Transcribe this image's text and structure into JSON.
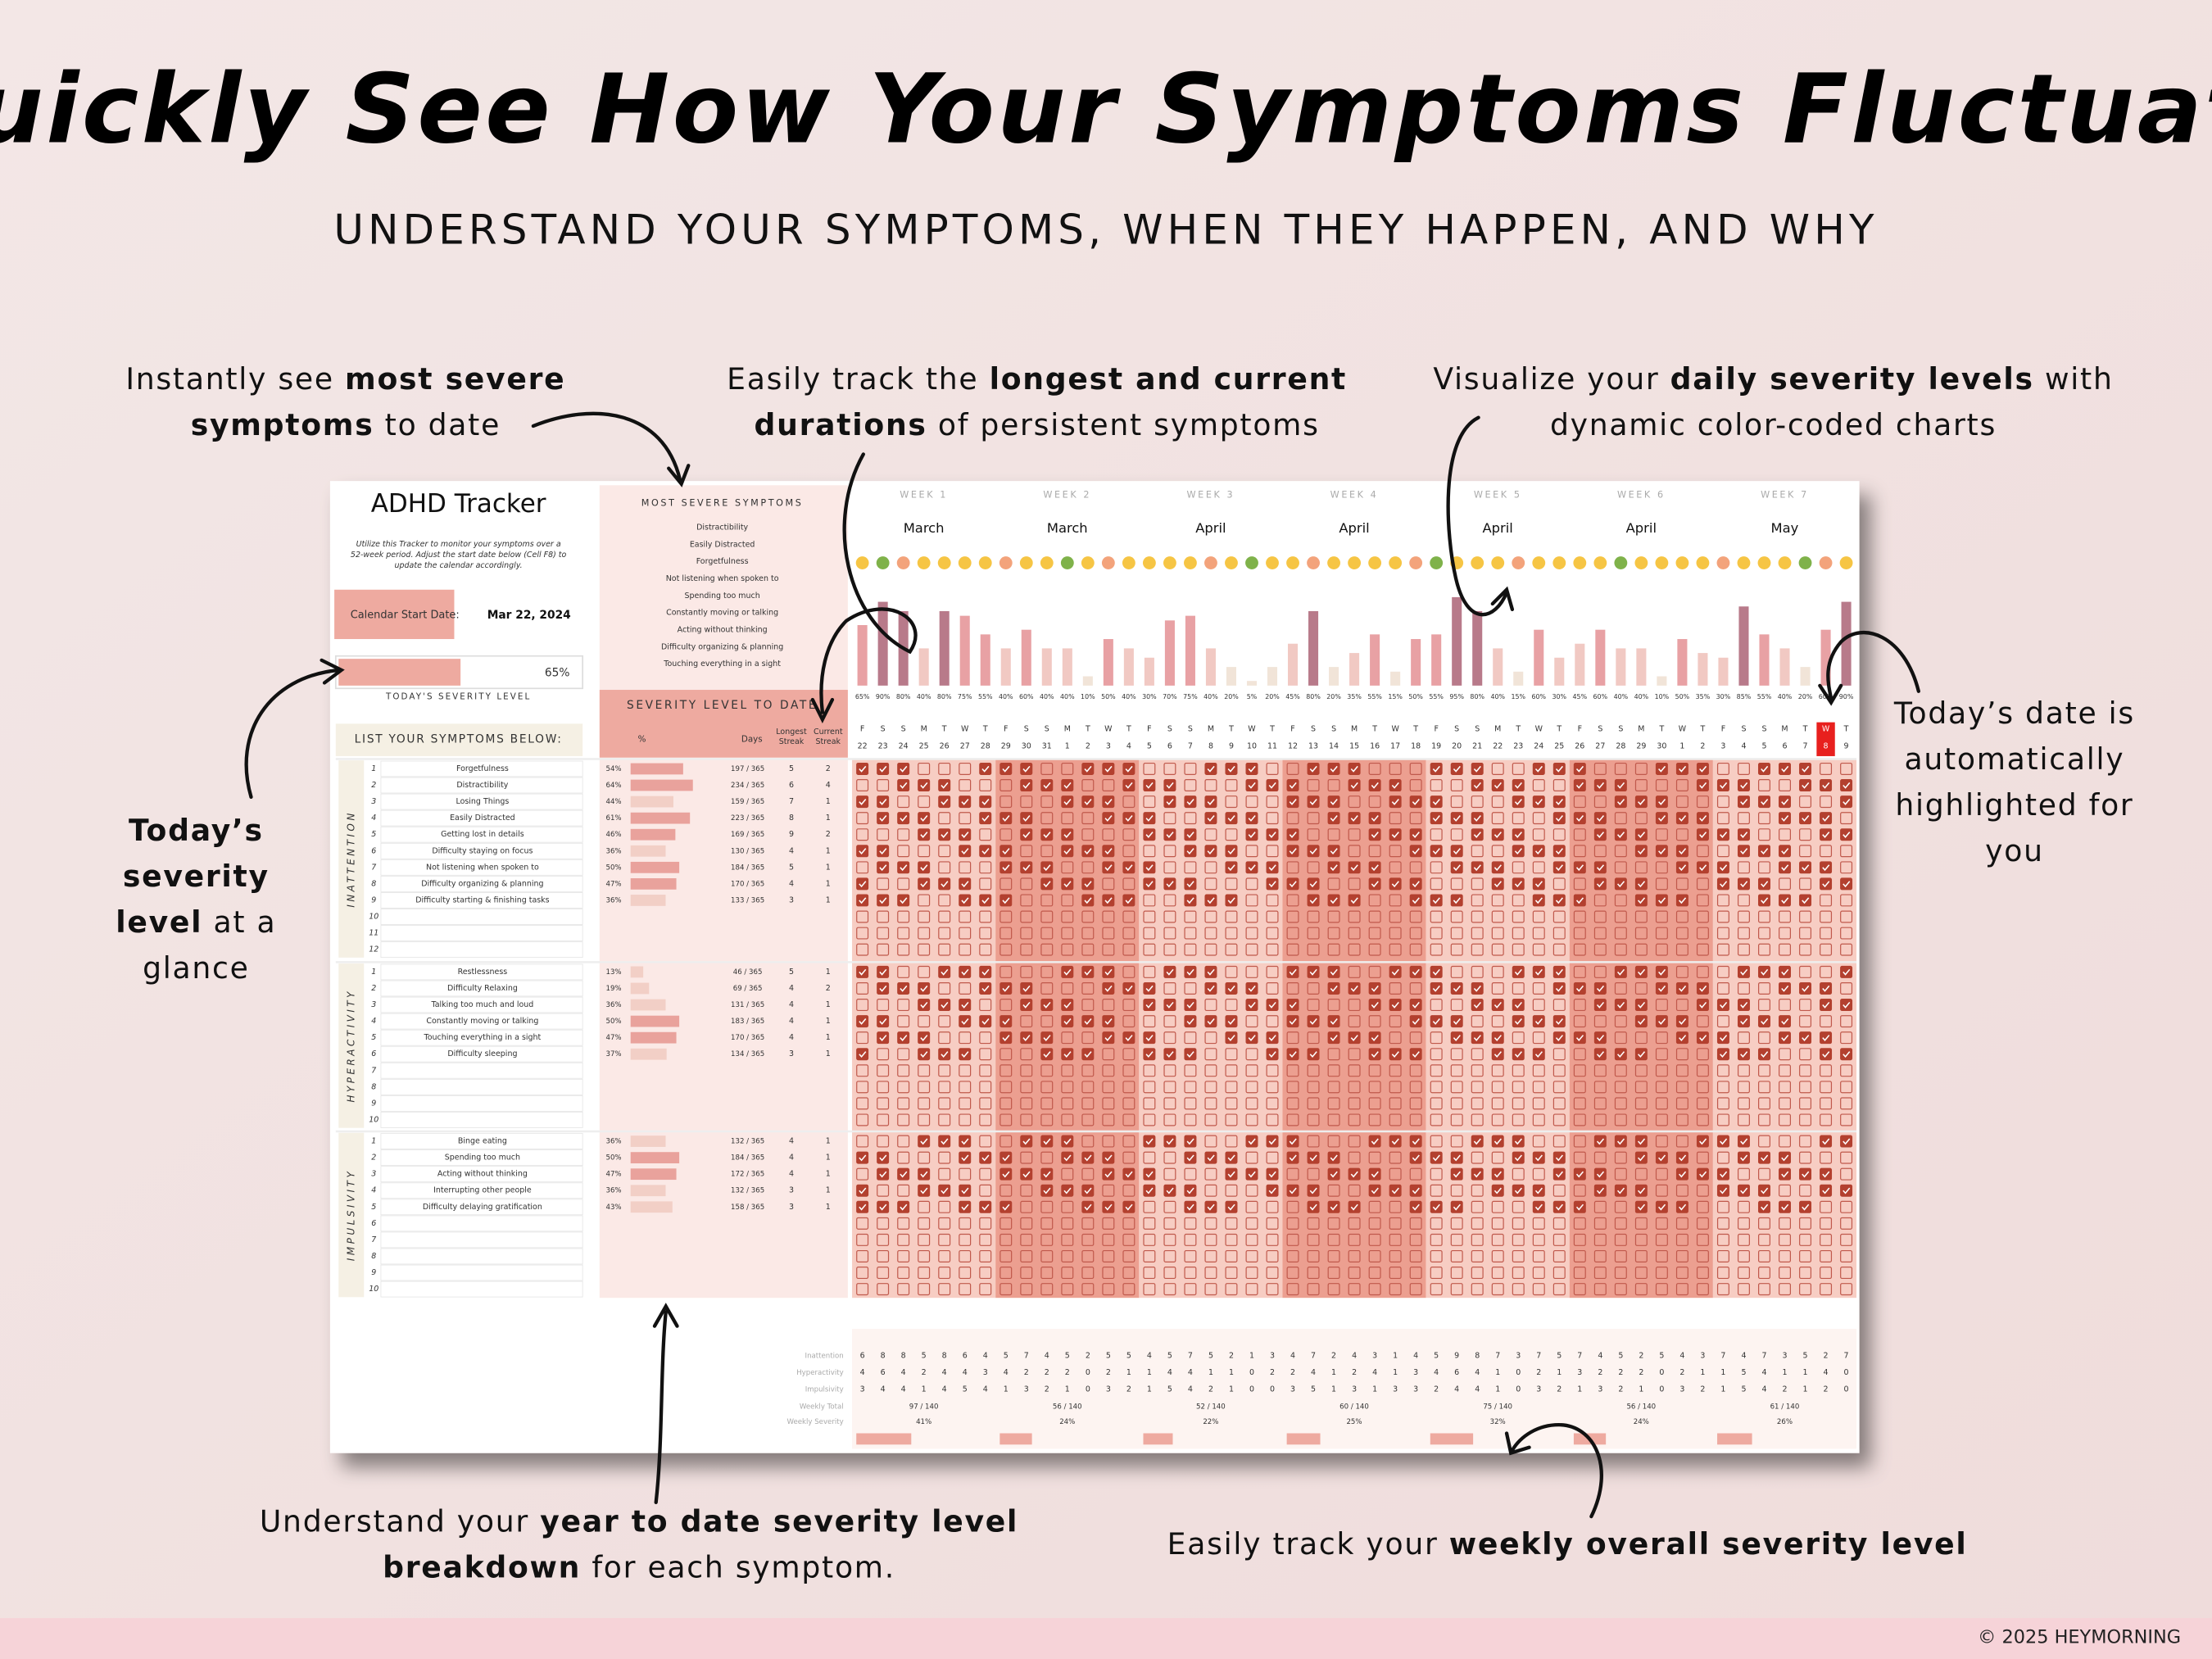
{
  "header": {
    "title": "Quickly See How Your Symptoms Fluctuate",
    "subtitle": "UNDERSTAND YOUR SYMPTOMS, WHEN THEY HAPPEN, AND WHY"
  },
  "annotations": [
    {
      "lines": [
        [
          {
            "text": "Instantly see "
          },
          {
            "text": "most severe",
            "bold": true
          }
        ],
        [
          {
            "text": "symptoms",
            "bold": true
          },
          {
            "text": " to date"
          }
        ]
      ]
    },
    {
      "lines": [
        [
          {
            "text": "Easily track the "
          },
          {
            "text": "longest and current",
            "bold": true
          }
        ],
        [
          {
            "text": "durations",
            "bold": true
          },
          {
            "text": " of persistent symptoms"
          }
        ]
      ]
    },
    {
      "lines": [
        [
          {
            "text": "Visualize your "
          },
          {
            "text": "daily severity levels",
            "bold": true
          },
          {
            "text": " with"
          }
        ],
        [
          {
            "text": "dynamic color-coded charts"
          }
        ]
      ]
    },
    {
      "lines": [
        [
          {
            "text": "Today’s",
            "bold": true
          }
        ],
        [
          {
            "text": "severity",
            "bold": true
          }
        ],
        [
          {
            "text": "level",
            "bold": true
          },
          {
            "text": " at a"
          }
        ],
        [
          {
            "text": "glance"
          }
        ]
      ]
    },
    {
      "lines": [
        [
          {
            "text": "Today’s date is"
          }
        ],
        [
          {
            "text": "automatically"
          }
        ],
        [
          {
            "text": "highlighted for"
          }
        ],
        [
          {
            "text": "you"
          }
        ]
      ]
    },
    {
      "lines": [
        [
          {
            "text": "Understand your "
          },
          {
            "text": "year to date severity level",
            "bold": true
          }
        ],
        [
          {
            "text": "breakdown",
            "bold": true
          },
          {
            "text": " for each symptom."
          }
        ]
      ]
    },
    {
      "lines": [
        [
          {
            "text": "Easily track your "
          },
          {
            "text": "weekly overall severity level",
            "bold": true
          }
        ]
      ]
    }
  ],
  "tracker": {
    "title": "ADHD Tracker",
    "description": [
      "Utilize this Tracker to monitor your symptoms over a",
      "52-week period. Adjust the start date below (Cell F8) to",
      "update the calendar accordingly."
    ],
    "start_label": "Calendar Start Date:",
    "start_date": "Mar 22, 2024",
    "today_level": 65,
    "today_level_label": "65%",
    "today_label": "TODAY'S SEVERITY LEVEL",
    "list_label": "LIST YOUR SYMPTOMS BELOW:",
    "most_severe_label": "MOST SEVERE SYMPTOMS",
    "most_severe": [
      "Distractibility",
      "Easily Distracted",
      "Forgetfulness",
      "Not listening when spoken to",
      "Spending too much",
      "Constantly moving or talking",
      "Acting without thinking",
      "Difficulty organizing & planning",
      "Touching everything in a sight"
    ],
    "severity_label": "SEVERITY LEVEL TO DATE",
    "col_pct": "%",
    "col_days": "Days",
    "col_longest": [
      "Longest",
      "Streak"
    ],
    "col_current": [
      "Current",
      "Streak"
    ],
    "sections": [
      {
        "label": "INATTENTION",
        "rows": [
          {
            "n": "1",
            "name": "Forgetfulness",
            "pct": 54,
            "pct_label": "54%",
            "days": "197 / 365",
            "longest": "5",
            "current": "2"
          },
          {
            "n": "2",
            "name": "Distractibility",
            "pct": 64,
            "pct_label": "64%",
            "days": "234 / 365",
            "longest": "6",
            "current": "4"
          },
          {
            "n": "3",
            "name": "Losing Things",
            "pct": 44,
            "pct_label": "44%",
            "days": "159 / 365",
            "longest": "7",
            "current": "1"
          },
          {
            "n": "4",
            "name": "Easily Distracted",
            "pct": 61,
            "pct_label": "61%",
            "days": "223 / 365",
            "longest": "8",
            "current": "1"
          },
          {
            "n": "5",
            "name": "Getting lost in details",
            "pct": 46,
            "pct_label": "46%",
            "days": "169 / 365",
            "longest": "9",
            "current": "2"
          },
          {
            "n": "6",
            "name": "Difficulty staying on focus",
            "pct": 36,
            "pct_label": "36%",
            "days": "130 / 365",
            "longest": "4",
            "current": "1"
          },
          {
            "n": "7",
            "name": "Not listening when spoken to",
            "pct": 50,
            "pct_label": "50%",
            "days": "184 / 365",
            "longest": "5",
            "current": "1"
          },
          {
            "n": "8",
            "name": "Difficulty organizing & planning",
            "pct": 47,
            "pct_label": "47%",
            "days": "170 / 365",
            "longest": "4",
            "current": "1"
          },
          {
            "n": "9",
            "name": "Difficulty starting & finishing tasks",
            "pct": 36,
            "pct_label": "36%",
            "days": "133 / 365",
            "longest": "3",
            "current": "1"
          },
          {
            "n": "10"
          },
          {
            "n": "11"
          },
          {
            "n": "12"
          }
        ]
      },
      {
        "label": "HYPERACTIVITY",
        "rows": [
          {
            "n": "1",
            "name": "Restlessness",
            "pct": 13,
            "pct_label": "13%",
            "days": "46 / 365",
            "longest": "5",
            "current": "1"
          },
          {
            "n": "2",
            "name": "Difficulty Relaxing",
            "pct": 19,
            "pct_label": "19%",
            "days": "69 / 365",
            "longest": "4",
            "current": "2"
          },
          {
            "n": "3",
            "name": "Talking too much and loud",
            "pct": 36,
            "pct_label": "36%",
            "days": "131 / 365",
            "longest": "4",
            "current": "1"
          },
          {
            "n": "4",
            "name": "Constantly moving or talking",
            "pct": 50,
            "pct_label": "50%",
            "days": "183 / 365",
            "longest": "4",
            "current": "1"
          },
          {
            "n": "5",
            "name": "Touching everything in a sight",
            "pct": 47,
            "pct_label": "47%",
            "days": "170 / 365",
            "longest": "4",
            "current": "1"
          },
          {
            "n": "6",
            "name": "Difficulty sleeping",
            "pct": 37,
            "pct_label": "37%",
            "days": "134 / 365",
            "longest": "3",
            "current": "1"
          },
          {
            "n": "7"
          },
          {
            "n": "8"
          },
          {
            "n": "9"
          },
          {
            "n": "10"
          }
        ]
      },
      {
        "label": "IMPULSIVITY",
        "rows": [
          {
            "n": "1",
            "name": "Binge eating",
            "pct": 36,
            "pct_label": "36%",
            "days": "132 / 365",
            "longest": "4",
            "current": "1"
          },
          {
            "n": "2",
            "name": "Spending too much",
            "pct": 50,
            "pct_label": "50%",
            "days": "184 / 365",
            "longest": "4",
            "current": "1"
          },
          {
            "n": "3",
            "name": "Acting without thinking",
            "pct": 47,
            "pct_label": "47%",
            "days": "172 / 365",
            "longest": "4",
            "current": "1"
          },
          {
            "n": "4",
            "name": "Interrupting other people",
            "pct": 36,
            "pct_label": "36%",
            "days": "132 / 365",
            "longest": "3",
            "current": "1"
          },
          {
            "n": "5",
            "name": "Difficulty delaying gratification",
            "pct": 43,
            "pct_label": "43%",
            "days": "158 / 365",
            "longest": "3",
            "current": "1"
          },
          {
            "n": "6"
          },
          {
            "n": "7"
          },
          {
            "n": "8"
          },
          {
            "n": "9"
          },
          {
            "n": "10"
          }
        ]
      }
    ],
    "weeks": [
      {
        "label": "WEEK 1",
        "month": "March"
      },
      {
        "label": "WEEK 2",
        "month": "March"
      },
      {
        "label": "WEEK 3",
        "month": "April"
      },
      {
        "label": "WEEK 4",
        "month": "April"
      },
      {
        "label": "WEEK 5",
        "month": "April"
      },
      {
        "label": "WEEK 6",
        "month": "April"
      },
      {
        "label": "WEEK 7",
        "month": "May"
      }
    ],
    "days": [
      {
        "d": "F",
        "n": "22"
      },
      {
        "d": "S",
        "n": "23"
      },
      {
        "d": "S",
        "n": "24"
      },
      {
        "d": "M",
        "n": "25"
      },
      {
        "d": "T",
        "n": "26"
      },
      {
        "d": "W",
        "n": "27"
      },
      {
        "d": "T",
        "n": "28"
      },
      {
        "d": "F",
        "n": "29"
      },
      {
        "d": "S",
        "n": "30"
      },
      {
        "d": "S",
        "n": "31"
      },
      {
        "d": "M",
        "n": "1"
      },
      {
        "d": "T",
        "n": "2"
      },
      {
        "d": "W",
        "n": "3"
      },
      {
        "d": "T",
        "n": "4"
      },
      {
        "d": "F",
        "n": "5"
      },
      {
        "d": "S",
        "n": "6"
      },
      {
        "d": "S",
        "n": "7"
      },
      {
        "d": "M",
        "n": "8"
      },
      {
        "d": "T",
        "n": "9"
      },
      {
        "d": "W",
        "n": "10"
      },
      {
        "d": "T",
        "n": "11"
      },
      {
        "d": "F",
        "n": "12"
      },
      {
        "d": "S",
        "n": "13"
      },
      {
        "d": "S",
        "n": "14"
      },
      {
        "d": "M",
        "n": "15"
      },
      {
        "d": "T",
        "n": "16"
      },
      {
        "d": "W",
        "n": "17"
      },
      {
        "d": "T",
        "n": "18"
      },
      {
        "d": "F",
        "n": "19"
      },
      {
        "d": "S",
        "n": "20"
      },
      {
        "d": "S",
        "n": "21"
      },
      {
        "d": "M",
        "n": "22"
      },
      {
        "d": "T",
        "n": "23"
      },
      {
        "d": "W",
        "n": "24"
      },
      {
        "d": "T",
        "n": "25"
      },
      {
        "d": "F",
        "n": "26"
      },
      {
        "d": "S",
        "n": "27"
      },
      {
        "d": "S",
        "n": "28"
      },
      {
        "d": "M",
        "n": "29"
      },
      {
        "d": "T",
        "n": "30"
      },
      {
        "d": "W",
        "n": "1"
      },
      {
        "d": "T",
        "n": "2"
      },
      {
        "d": "F",
        "n": "3"
      },
      {
        "d": "S",
        "n": "4"
      },
      {
        "d": "S",
        "n": "5"
      },
      {
        "d": "M",
        "n": "6"
      },
      {
        "d": "T",
        "n": "7"
      },
      {
        "d": "W",
        "n": "8",
        "today": true
      },
      {
        "d": "T",
        "n": "9"
      }
    ],
    "daily_severity": {
      "values": [
        65,
        90,
        80,
        40,
        80,
        75,
        55,
        40,
        60,
        40,
        40,
        10,
        50,
        40,
        30,
        70,
        75,
        40,
        20,
        5,
        20,
        45,
        80,
        20,
        35,
        55,
        15,
        50,
        55,
        95,
        80,
        40,
        15,
        60,
        30,
        45,
        60,
        40,
        40,
        10,
        50,
        35,
        30,
        85,
        55,
        40,
        20,
        60,
        90
      ],
      "labels": [
        "65%",
        "90%",
        "80%",
        "40%",
        "80%",
        "75%",
        "55%",
        "40%",
        "60%",
        "40%",
        "40%",
        "10%",
        "50%",
        "40%",
        "30%",
        "70%",
        "75%",
        "40%",
        "20%",
        "5%",
        "20%",
        "45%",
        "80%",
        "20%",
        "35%",
        "55%",
        "15%",
        "50%",
        "55%",
        "95%",
        "80%",
        "40%",
        "15%",
        "60%",
        "30%",
        "45%",
        "60%",
        "40%",
        "40%",
        "10%",
        "50%",
        "35%",
        "30%",
        "85%",
        "55%",
        "40%",
        "20%",
        "60%",
        "90%"
      ]
    },
    "summary": {
      "rows": [
        {
          "label": "Inattention",
          "values": [
            6,
            8,
            8,
            5,
            8,
            6,
            4,
            5,
            7,
            4,
            5,
            2,
            5,
            5,
            4,
            5,
            7,
            5,
            2,
            1,
            3,
            4,
            7,
            2,
            4,
            3,
            1,
            4,
            5,
            9,
            8,
            7,
            3,
            7,
            5,
            7,
            4,
            5,
            2,
            5,
            4,
            3,
            7,
            4,
            7,
            3,
            5,
            2,
            7
          ]
        },
        {
          "label": "Hyperactivity",
          "values": [
            4,
            6,
            4,
            2,
            4,
            4,
            3,
            4,
            2,
            2,
            2,
            0,
            2,
            1,
            1,
            4,
            4,
            1,
            1,
            0,
            2,
            2,
            4,
            1,
            2,
            4,
            1,
            3,
            4,
            6,
            4,
            1,
            0,
            2,
            1,
            3,
            2,
            2,
            2,
            0,
            2,
            1,
            1,
            5,
            4,
            1,
            1,
            4,
            0
          ]
        },
        {
          "label": "Impulsivity",
          "values": [
            3,
            4,
            4,
            1,
            4,
            5,
            4,
            1,
            3,
            2,
            1,
            0,
            3,
            2,
            1,
            5,
            4,
            2,
            1,
            0,
            0,
            3,
            5,
            1,
            3,
            1,
            3,
            3,
            2,
            4,
            4,
            1,
            0,
            3,
            2,
            1,
            3,
            2,
            1,
            0,
            3,
            2,
            1,
            5,
            4,
            2,
            1,
            2,
            0
          ]
        }
      ],
      "total_label": "Weekly Total",
      "totals": [
        "97 / 140",
        "56 / 140",
        "52 / 140",
        "60 / 140",
        "75 / 140",
        "56 / 140",
        "61 / 140"
      ],
      "severity_label": "Weekly Severity",
      "severity": [
        41,
        24,
        22,
        25,
        32,
        24,
        26
      ],
      "severity_labels": [
        "41%",
        "24%",
        "22%",
        "25%",
        "32%",
        "24%",
        "26%"
      ]
    }
  },
  "footer": {
    "copyright": "© 2025 HEYMORNING"
  }
}
